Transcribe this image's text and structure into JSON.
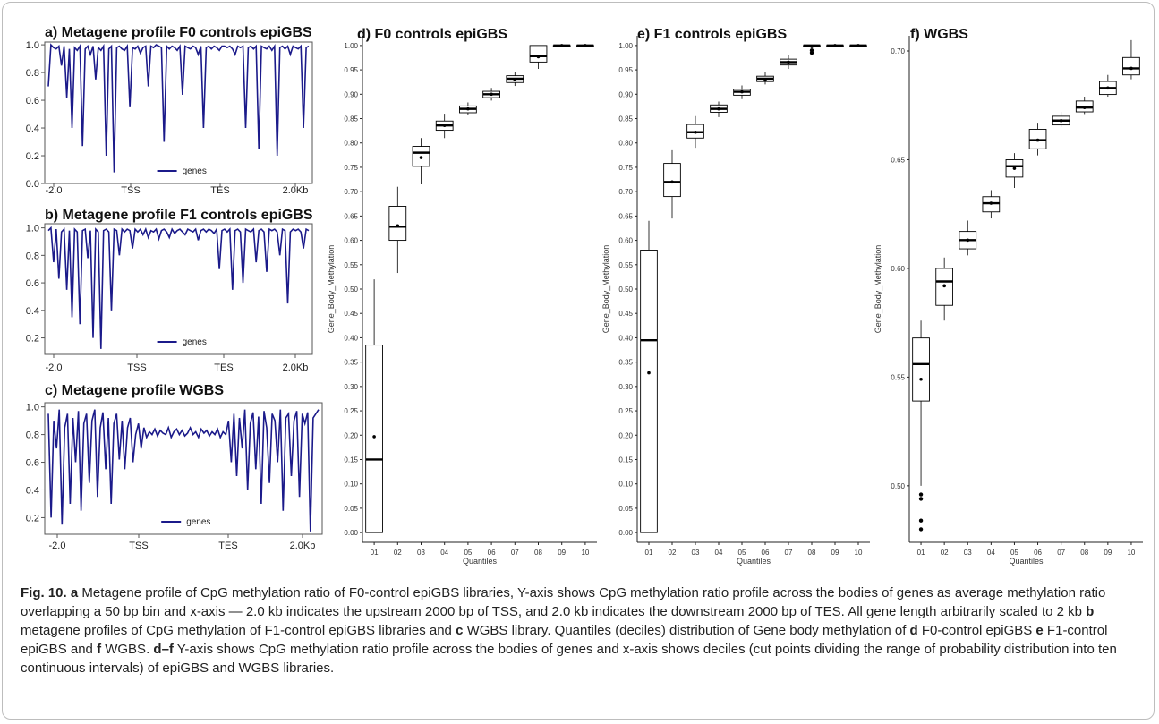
{
  "colors": {
    "line": "#1b1a8a",
    "box": "#000000",
    "frame": "#bdbdbd"
  },
  "panels": {
    "a": {
      "title": "a) Metagene profile F0 controls epiGBS"
    },
    "b": {
      "title": "b) Metagene profile F1 controls epiGBS"
    },
    "c": {
      "title": "c) Metagene profile WGBS"
    },
    "d": {
      "title": "d) F0 controls epiGBS"
    },
    "e": {
      "title": "e) F1 controls epiGBS"
    },
    "f": {
      "title": "f) WGBS"
    }
  },
  "chart_data": [
    {
      "id": "a",
      "type": "line",
      "x_ticks": [
        "-2.0",
        "TSS",
        "TES",
        "2.0Kb"
      ],
      "y_ticks": [
        "0.0",
        "0.2",
        "0.4",
        "0.6",
        "0.8",
        "1.0"
      ],
      "ylim": [
        0,
        1.02
      ],
      "legend": "genes",
      "series": [
        {
          "name": "genes",
          "values": [
            0.7,
            1.0,
            0.98,
            0.97,
            0.99,
            0.85,
            0.99,
            0.62,
            0.97,
            0.4,
            0.98,
            0.96,
            0.99,
            0.27,
            0.97,
            0.99,
            0.93,
            0.99,
            0.75,
            0.98,
            0.96,
            0.99,
            0.2,
            0.97,
            0.99,
            0.08,
            0.98,
            0.99,
            0.97,
            0.96,
            0.99,
            0.55,
            0.98,
            0.97,
            0.99,
            0.94,
            0.98,
            0.99,
            0.7,
            0.99,
            0.98,
            1.0,
            0.99,
            0.98,
            0.3,
            0.99,
            0.97,
            0.99,
            0.98,
            0.96,
            0.99,
            0.64,
            0.99,
            0.98,
            0.97,
            0.99,
            0.98,
            0.93,
            0.99,
            0.4,
            0.98,
            0.99,
            0.97,
            0.99,
            0.98,
            0.96,
            0.99,
            0.99,
            0.98,
            0.99,
            0.97,
            0.93,
            0.99,
            0.98,
            0.99,
            0.4,
            0.98,
            0.99,
            0.97,
            0.99,
            0.25,
            0.99,
            0.98,
            0.97,
            0.99,
            0.96,
            0.99,
            0.2,
            0.98,
            0.99,
            0.97,
            0.99,
            0.93,
            0.99,
            0.98,
            0.97,
            0.99,
            0.4,
            0.98,
            0.99
          ]
        }
      ]
    },
    {
      "id": "b",
      "type": "line",
      "x_ticks": [
        "-2.0",
        "TSS",
        "TES",
        "2.0Kb"
      ],
      "y_ticks": [
        "0.2",
        "0.4",
        "0.6",
        "0.8",
        "1.0"
      ],
      "ylim": [
        0.08,
        1.03
      ],
      "legend": "genes",
      "series": [
        {
          "name": "genes",
          "values": [
            0.98,
            1.0,
            0.75,
            0.99,
            0.63,
            0.97,
            0.99,
            0.55,
            0.98,
            0.35,
            0.99,
            0.97,
            0.3,
            0.98,
            0.99,
            0.78,
            0.98,
            0.2,
            0.99,
            0.97,
            0.12,
            0.98,
            0.99,
            0.97,
            0.4,
            0.99,
            0.98,
            0.8,
            0.99,
            0.97,
            0.99,
            0.98,
            0.85,
            0.99,
            0.97,
            0.99,
            0.95,
            0.99,
            0.93,
            0.98,
            0.97,
            0.99,
            0.92,
            0.98,
            0.99,
            0.97,
            0.93,
            0.99,
            0.96,
            0.98,
            0.99,
            0.97,
            0.95,
            0.99,
            0.98,
            0.97,
            0.99,
            0.91,
            0.98,
            0.99,
            0.97,
            0.99,
            0.98,
            0.96,
            0.99,
            0.7,
            0.98,
            0.99,
            0.97,
            0.99,
            0.55,
            0.98,
            0.99,
            0.97,
            0.6,
            0.99,
            0.98,
            0.97,
            0.99,
            0.75,
            0.98,
            0.99,
            0.97,
            0.68,
            0.99,
            0.98,
            0.99,
            0.97,
            0.8,
            0.99,
            0.98,
            0.45,
            0.97,
            0.99,
            0.98,
            0.99,
            0.97,
            0.85,
            0.99,
            0.98
          ]
        }
      ]
    },
    {
      "id": "c",
      "type": "line",
      "x_ticks": [
        "-2.0",
        "TSS",
        "TES",
        "2.0Kb"
      ],
      "y_ticks": [
        "0.2",
        "0.4",
        "0.6",
        "0.8",
        "1.0"
      ],
      "ylim": [
        0.08,
        1.03
      ],
      "legend": "genes",
      "series": [
        {
          "name": "genes",
          "values": [
            0.95,
            0.2,
            0.9,
            0.7,
            0.98,
            0.15,
            0.85,
            0.95,
            0.3,
            0.92,
            0.6,
            0.97,
            0.25,
            0.88,
            0.95,
            0.45,
            0.9,
            0.98,
            0.35,
            0.85,
            0.96,
            0.55,
            0.92,
            0.3,
            0.88,
            0.95,
            0.62,
            0.9,
            0.55,
            0.85,
            0.92,
            0.6,
            0.8,
            0.88,
            0.7,
            0.85,
            0.78,
            0.82,
            0.8,
            0.84,
            0.79,
            0.83,
            0.81,
            0.8,
            0.85,
            0.78,
            0.82,
            0.84,
            0.8,
            0.83,
            0.79,
            0.81,
            0.85,
            0.8,
            0.82,
            0.78,
            0.84,
            0.81,
            0.83,
            0.79,
            0.82,
            0.8,
            0.84,
            0.78,
            0.82,
            0.8,
            0.9,
            0.6,
            0.95,
            0.5,
            0.92,
            0.7,
            0.98,
            0.4,
            0.88,
            0.96,
            0.55,
            0.93,
            0.3,
            0.97,
            0.85,
            0.45,
            0.95,
            0.9,
            0.6,
            0.98,
            0.25,
            0.92,
            0.95,
            0.5,
            0.9,
            0.97,
            0.35,
            0.95,
            0.88,
            0.96,
            0.1,
            0.92,
            0.95,
            0.98
          ]
        }
      ]
    },
    {
      "id": "d",
      "type": "box",
      "categories": [
        "01",
        "02",
        "03",
        "04",
        "05",
        "06",
        "07",
        "08",
        "09",
        "10"
      ],
      "xlabel": "Quantiles",
      "ylabel": "Gene_Body_Methylation",
      "y_ticks": [
        "0.00",
        "0.05",
        "0.10",
        "0.15",
        "0.20",
        "0.25",
        "0.30",
        "0.35",
        "0.40",
        "0.45",
        "0.50",
        "0.55",
        "0.60",
        "0.65",
        "0.70",
        "0.75",
        "0.80",
        "0.85",
        "0.90",
        "0.95",
        "1.00"
      ],
      "ylim": [
        -0.02,
        1.02
      ],
      "boxes": [
        {
          "lo": 0.0,
          "q1": 0.0,
          "med": 0.15,
          "q3": 0.385,
          "hi": 0.52,
          "mean": 0.197
        },
        {
          "lo": 0.533,
          "q1": 0.6,
          "med": 0.628,
          "q3": 0.67,
          "hi": 0.71,
          "mean": 0.63
        },
        {
          "lo": 0.715,
          "q1": 0.752,
          "med": 0.78,
          "q3": 0.793,
          "hi": 0.81,
          "mean": 0.77
        },
        {
          "lo": 0.81,
          "q1": 0.826,
          "med": 0.836,
          "q3": 0.845,
          "hi": 0.86,
          "mean": 0.836
        },
        {
          "lo": 0.857,
          "q1": 0.862,
          "med": 0.87,
          "q3": 0.876,
          "hi": 0.883,
          "mean": 0.87
        },
        {
          "lo": 0.887,
          "q1": 0.893,
          "med": 0.9,
          "q3": 0.906,
          "hi": 0.913,
          "mean": 0.9
        },
        {
          "lo": 0.917,
          "q1": 0.924,
          "med": 0.932,
          "q3": 0.938,
          "hi": 0.946,
          "mean": 0.93
        },
        {
          "lo": 0.952,
          "q1": 0.966,
          "med": 0.978,
          "q3": 1.0,
          "hi": 1.0,
          "mean": 0.977
        },
        {
          "lo": 1.0,
          "q1": 1.0,
          "med": 1.0,
          "q3": 1.0,
          "hi": 1.0,
          "mean": 1.0
        },
        {
          "lo": 1.0,
          "q1": 1.0,
          "med": 1.0,
          "q3": 1.0,
          "hi": 1.0,
          "mean": 1.0
        }
      ],
      "outliers": []
    },
    {
      "id": "e",
      "type": "box",
      "categories": [
        "01",
        "02",
        "03",
        "04",
        "05",
        "06",
        "07",
        "08",
        "09",
        "10"
      ],
      "xlabel": "Quantiles",
      "ylabel": "Gene_Body_Methylation",
      "y_ticks": [
        "0.00",
        "0.05",
        "0.10",
        "0.15",
        "0.20",
        "0.25",
        "0.30",
        "0.35",
        "0.40",
        "0.45",
        "0.50",
        "0.55",
        "0.60",
        "0.65",
        "0.70",
        "0.75",
        "0.80",
        "0.85",
        "0.90",
        "0.95",
        "1.00"
      ],
      "ylim": [
        -0.02,
        1.02
      ],
      "boxes": [
        {
          "lo": 0.0,
          "q1": 0.0,
          "med": 0.395,
          "q3": 0.58,
          "hi": 0.64,
          "mean": 0.328
        },
        {
          "lo": 0.645,
          "q1": 0.69,
          "med": 0.72,
          "q3": 0.758,
          "hi": 0.785,
          "mean": 0.72
        },
        {
          "lo": 0.79,
          "q1": 0.81,
          "med": 0.822,
          "q3": 0.838,
          "hi": 0.855,
          "mean": 0.822
        },
        {
          "lo": 0.853,
          "q1": 0.863,
          "med": 0.87,
          "q3": 0.878,
          "hi": 0.885,
          "mean": 0.87
        },
        {
          "lo": 0.89,
          "q1": 0.898,
          "med": 0.905,
          "q3": 0.91,
          "hi": 0.918,
          "mean": 0.905
        },
        {
          "lo": 0.92,
          "q1": 0.926,
          "med": 0.932,
          "q3": 0.937,
          "hi": 0.945,
          "mean": 0.93
        },
        {
          "lo": 0.952,
          "q1": 0.96,
          "med": 0.966,
          "q3": 0.972,
          "hi": 0.98,
          "mean": 0.966
        },
        {
          "lo": 0.985,
          "q1": 0.997,
          "med": 1.0,
          "q3": 1.0,
          "hi": 1.0,
          "mean": 0.998
        },
        {
          "lo": 1.0,
          "q1": 1.0,
          "med": 1.0,
          "q3": 1.0,
          "hi": 1.0,
          "mean": 1.0
        },
        {
          "lo": 1.0,
          "q1": 1.0,
          "med": 1.0,
          "q3": 1.0,
          "hi": 1.0,
          "mean": 1.0
        }
      ],
      "outliers": [
        {
          "q": "08",
          "y": 0.985
        },
        {
          "q": "08",
          "y": 0.99
        }
      ]
    },
    {
      "id": "f",
      "type": "box",
      "categories": [
        "01",
        "02",
        "03",
        "04",
        "05",
        "06",
        "07",
        "08",
        "09",
        "10"
      ],
      "xlabel": "Quantiles",
      "ylabel": "Gene_Body_Methylation",
      "y_ticks": [
        "0.50",
        "0.55",
        "0.60",
        "0.65",
        "0.70"
      ],
      "y_tick_values": [
        0.5,
        0.55,
        0.6,
        0.65,
        0.7
      ],
      "ylim": [
        0.474,
        0.707
      ],
      "boxes": [
        {
          "lo": 0.5,
          "q1": 0.539,
          "med": 0.556,
          "q3": 0.568,
          "hi": 0.576,
          "mean": 0.549
        },
        {
          "lo": 0.576,
          "q1": 0.583,
          "med": 0.594,
          "q3": 0.6,
          "hi": 0.605,
          "mean": 0.592
        },
        {
          "lo": 0.606,
          "q1": 0.609,
          "med": 0.613,
          "q3": 0.617,
          "hi": 0.622,
          "mean": 0.613
        },
        {
          "lo": 0.623,
          "q1": 0.626,
          "med": 0.63,
          "q3": 0.633,
          "hi": 0.636,
          "mean": 0.63
        },
        {
          "lo": 0.637,
          "q1": 0.642,
          "med": 0.647,
          "q3": 0.65,
          "hi": 0.653,
          "mean": 0.646
        },
        {
          "lo": 0.652,
          "q1": 0.655,
          "med": 0.659,
          "q3": 0.664,
          "hi": 0.667,
          "mean": 0.659
        },
        {
          "lo": 0.665,
          "q1": 0.666,
          "med": 0.668,
          "q3": 0.67,
          "hi": 0.672,
          "mean": 0.668
        },
        {
          "lo": 0.671,
          "q1": 0.672,
          "med": 0.674,
          "q3": 0.677,
          "hi": 0.679,
          "mean": 0.674
        },
        {
          "lo": 0.679,
          "q1": 0.68,
          "med": 0.683,
          "q3": 0.686,
          "hi": 0.689,
          "mean": 0.683
        },
        {
          "lo": 0.687,
          "q1": 0.689,
          "med": 0.692,
          "q3": 0.697,
          "hi": 0.705,
          "mean": 0.692
        }
      ],
      "outliers": [
        {
          "q": "01",
          "y": 0.496
        },
        {
          "q": "01",
          "y": 0.494
        },
        {
          "q": "01",
          "y": 0.484
        },
        {
          "q": "01",
          "y": 0.48
        }
      ]
    }
  ],
  "caption": {
    "fig_label": "Fig. 10.",
    "parts": [
      {
        "b": "a"
      },
      {
        "t": " Metagene profile of CpG methylation ratio of F0-control epiGBS libraries, Y-axis shows CpG methylation ratio profile across the bodies of genes as average methylation ratio overlapping a 50 bp bin and x-axis — 2.0 kb indicates the upstream 2000 bp of TSS, and 2.0 kb indicates the downstream 2000 bp of TES. All gene length arbitrarily scaled to 2 kb "
      },
      {
        "b": "b"
      },
      {
        "t": " metagene profiles of CpG methylation of F1-control epiGBS libraries and "
      },
      {
        "b": "c"
      },
      {
        "t": " WGBS library. Quantiles (deciles) distribution of Gene body methylation of "
      },
      {
        "b": "d"
      },
      {
        "t": " F0-control epiGBS "
      },
      {
        "b": "e"
      },
      {
        "t": " F1-control epiGBS and "
      },
      {
        "b": "f"
      },
      {
        "t": " WGBS. "
      },
      {
        "b": "d–f"
      },
      {
        "t": " Y-axis shows CpG methylation ratio profile across the bodies of genes and x-axis shows deciles (cut points dividing the range of probability distribution into ten continuous intervals) of epiGBS and WGBS libraries."
      }
    ]
  }
}
